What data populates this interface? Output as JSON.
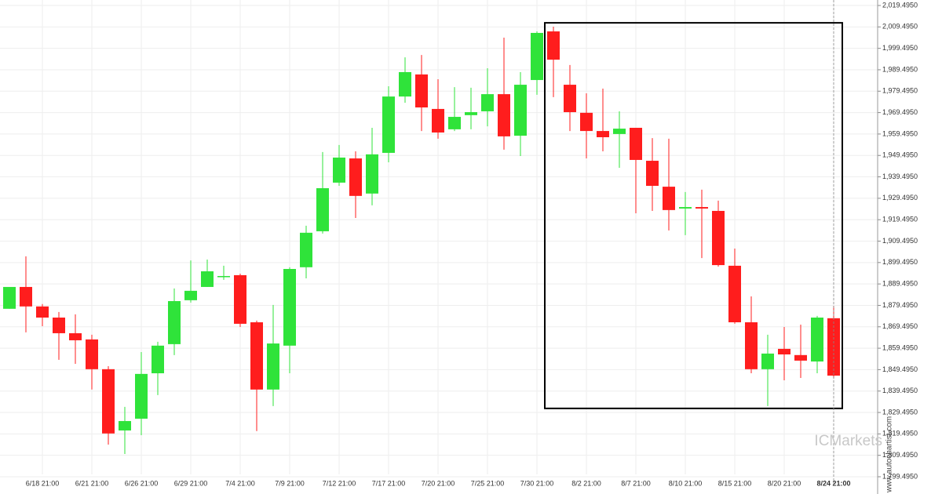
{
  "chart_data": {
    "type": "candlestick",
    "categories": [
      null,
      null,
      "6/18 21:00",
      null,
      null,
      "6/21 21:00",
      null,
      null,
      "6/26 21:00",
      null,
      null,
      "6/29 21:00",
      null,
      null,
      "7/4 21:00",
      null,
      null,
      "7/9 21:00",
      null,
      null,
      "7/12 21:00",
      null,
      null,
      "7/17 21:00",
      null,
      null,
      "7/20 21:00",
      null,
      null,
      "7/25 21:00",
      null,
      null,
      "7/30 21:00",
      null,
      null,
      "8/2 21:00",
      null,
      null,
      "8/7 21:00",
      null,
      null,
      "8/10 21:00",
      null,
      null,
      "8/15 21:00",
      null,
      null,
      "8/20 21:00",
      null,
      null,
      "8/24 21:00"
    ],
    "open": [
      1877.9,
      1888.1,
      1879.0,
      1873.8,
      1866.5,
      1863.6,
      1849.7,
      1821.1,
      1826.6,
      1847.8,
      1861.4,
      1881.9,
      1888.1,
      1892.9,
      1893.6,
      1871.6,
      1840.2,
      1860.7,
      1897.3,
      1914.1,
      1936.8,
      1948.1,
      1931.7,
      1950.7,
      1977.0,
      1987.3,
      1971.2,
      1961.7,
      1968.3,
      1970.1,
      1978.1,
      1958.7,
      1984.7,
      2007.4,
      1982.5,
      1969.4,
      1960.9,
      1959.5,
      1962.4,
      1947.0,
      1934.9,
      1924.7,
      1925.4,
      1923.6,
      1898.0,
      1871.6,
      1849.7,
      1859.2,
      1856.3,
      1853.3,
      1873.5
    ],
    "high": [
      1888.1,
      1902.4,
      1880.1,
      1876.4,
      1875.3,
      1865.8,
      1851.1,
      1832.1,
      1857.7,
      1862.5,
      1887.4,
      1900.5,
      1900.9,
      1898.0,
      1894.3,
      1872.4,
      1879.7,
      1897.3,
      1916.7,
      1951.1,
      1954.4,
      1951.4,
      1962.4,
      1981.8,
      1995.3,
      1996.4,
      1985.1,
      1981.4,
      1981.1,
      1990.2,
      2004.5,
      1988.4,
      2007.4,
      2009.6,
      1991.7,
      1978.5,
      1980.7,
      1970.1,
      1962.4,
      1957.6,
      1957.3,
      1932.4,
      1933.5,
      1928.4,
      1906.0,
      1883.7,
      1865.8,
      1869.4,
      1870.5,
      1874.6,
      1879.3
    ],
    "low": [
      1877.9,
      1866.9,
      1869.8,
      1854.1,
      1852.2,
      1840.2,
      1814.5,
      1810.1,
      1818.9,
      1837.6,
      1856.3,
      1880.8,
      1888.1,
      1891.4,
      1869.4,
      1820.8,
      1832.5,
      1847.8,
      1892.1,
      1913.0,
      1935.3,
      1920.3,
      1926.2,
      1946.3,
      1974.1,
      1960.9,
      1957.3,
      1960.9,
      1961.7,
      1963.1,
      1952.2,
      1949.2,
      1977.8,
      1976.7,
      1960.9,
      1948.1,
      1951.4,
      1943.7,
      1922.5,
      1923.6,
      1914.5,
      1912.3,
      1901.6,
      1897.6,
      1870.9,
      1847.8,
      1832.5,
      1844.5,
      1845.6,
      1847.8,
      1845.6
    ],
    "close": [
      1888.1,
      1879.0,
      1873.8,
      1866.5,
      1863.2,
      1849.7,
      1819.7,
      1825.5,
      1847.5,
      1860.7,
      1881.5,
      1886.3,
      1895.4,
      1893.2,
      1870.9,
      1840.2,
      1861.7,
      1896.5,
      1913.4,
      1934.2,
      1948.5,
      1930.6,
      1950.0,
      1977.0,
      1988.4,
      1971.9,
      1960.2,
      1967.5,
      1969.7,
      1978.1,
      1958.4,
      1982.5,
      2006.7,
      1994.2,
      1969.7,
      1960.9,
      1958.0,
      1962.0,
      1947.4,
      1935.3,
      1924.0,
      1925.4,
      1924.7,
      1898.3,
      1871.6,
      1849.7,
      1857.0,
      1856.6,
      1853.7,
      1873.8,
      1846.7
    ],
    "up_color": "#2fe33a",
    "down_color": "#ff1d1d",
    "ylim": [
      1795.1,
      2022.06
    ],
    "yticks": [
      {
        "value": 1799.495,
        "label": "1,799.4950"
      },
      {
        "value": 1809.495,
        "label": "1,809.4950"
      },
      {
        "value": 1819.495,
        "label": "1,819.4950"
      },
      {
        "value": 1829.495,
        "label": "1,829.4950"
      },
      {
        "value": 1839.495,
        "label": "1,839.4950"
      },
      {
        "value": 1849.495,
        "label": "1,849.4950"
      },
      {
        "value": 1859.495,
        "label": "1,859.4950"
      },
      {
        "value": 1869.495,
        "label": "1,869.4950"
      },
      {
        "value": 1879.495,
        "label": "1,879.4950"
      },
      {
        "value": 1889.495,
        "label": "1,889.4950"
      },
      {
        "value": 1899.495,
        "label": "1,899.4950"
      },
      {
        "value": 1909.495,
        "label": "1,909.4950"
      },
      {
        "value": 1919.495,
        "label": "1,919.4950"
      },
      {
        "value": 1929.495,
        "label": "1,929.4950"
      },
      {
        "value": 1939.495,
        "label": "1,939.4950"
      },
      {
        "value": 1949.495,
        "label": "1,949.4950"
      },
      {
        "value": 1959.495,
        "label": "1,959.4950"
      },
      {
        "value": 1969.495,
        "label": "1,969.4950"
      },
      {
        "value": 1979.495,
        "label": "1,979.4950"
      },
      {
        "value": 1989.495,
        "label": "1,989.4950"
      },
      {
        "value": 1999.495,
        "label": "1,999.4950"
      },
      {
        "value": 2009.495,
        "label": "2,009.4950"
      },
      {
        "value": 2019.495,
        "label": "2,019.4950"
      }
    ],
    "grid": true,
    "highlight_range": [
      1831.4,
      2011.4
    ],
    "watermark": "ICMarkets",
    "credit": "www.autochartist.com"
  }
}
